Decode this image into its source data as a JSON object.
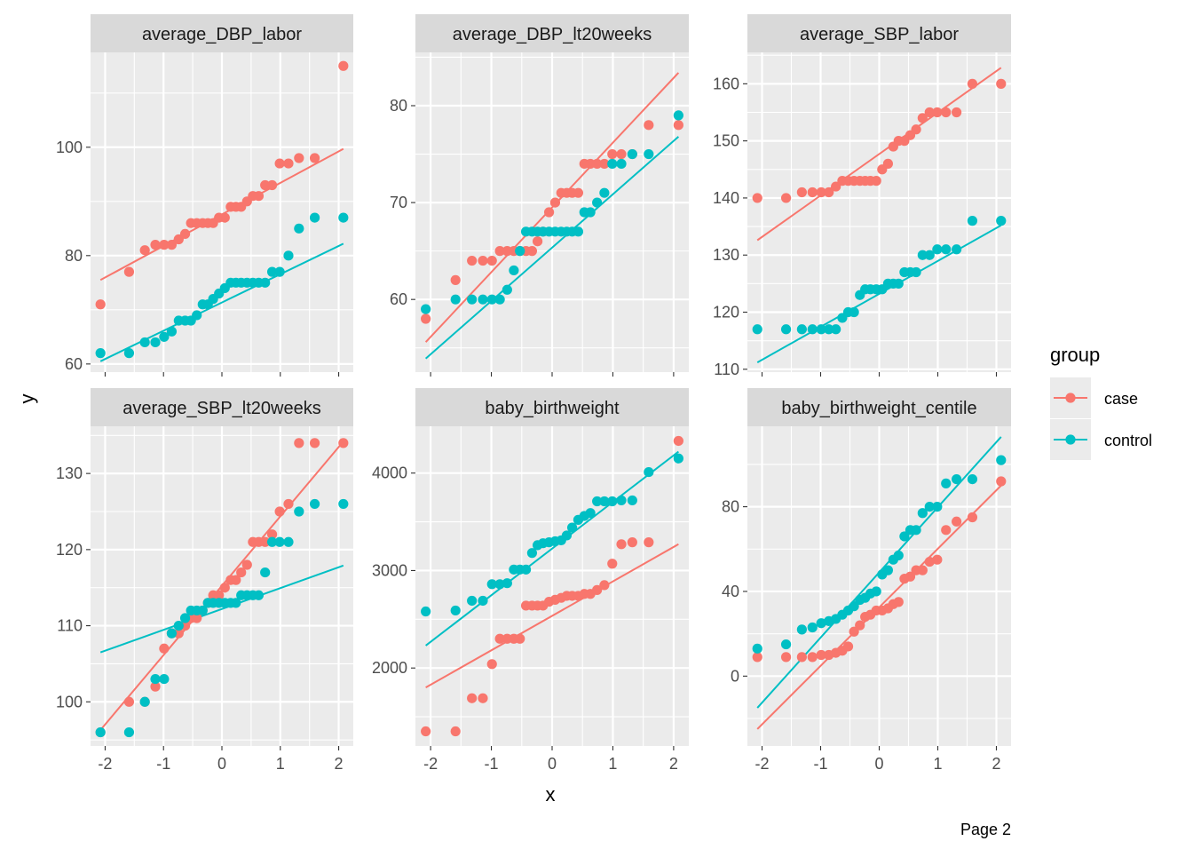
{
  "colors": {
    "case": "#F8766D",
    "control": "#00BFC4",
    "panel_bg": "#EBEBEB",
    "strip_bg": "#D9D9D9",
    "grid": "#FFFFFF"
  },
  "axis": {
    "xlabel": "x",
    "ylabel": "y"
  },
  "legend": {
    "title": "group",
    "placement": "right",
    "entries": [
      {
        "key": "case",
        "label": "case"
      },
      {
        "key": "control",
        "label": "control"
      }
    ]
  },
  "caption": "Page 2",
  "x_ticks": [
    "-2",
    "-1",
    "0",
    "1",
    "2"
  ],
  "x_tick_values": [
    -2,
    -1,
    0,
    1,
    2
  ],
  "chart_data": [
    {
      "type": "scatter",
      "facet": "average_DBP_labor",
      "xlim": [
        -2.25,
        2.25
      ],
      "ylim": [
        58.5,
        117.5
      ],
      "y_ticks": [
        "60",
        "80",
        "100"
      ],
      "y_tick_values": [
        60,
        80,
        100
      ],
      "series": [
        {
          "name": "case",
          "x": [
            -2.08,
            -1.59,
            -1.32,
            -1.14,
            -0.99,
            -0.86,
            -0.74,
            -0.63,
            -0.53,
            -0.43,
            -0.33,
            -0.24,
            -0.15,
            -0.05,
            0.05,
            0.15,
            0.24,
            0.33,
            0.43,
            0.53,
            0.63,
            0.74,
            0.86,
            0.99,
            1.14,
            1.32,
            1.59,
            2.08
          ],
          "y": [
            71,
            77,
            81,
            82,
            82,
            82,
            83,
            84,
            86,
            86,
            86,
            86,
            86,
            87,
            87,
            89,
            89,
            89,
            90,
            91,
            91,
            93,
            93,
            97,
            97,
            98,
            98,
            115
          ],
          "line": [
            [
              -2.08,
              75.5
            ],
            [
              2.08,
              99.7
            ]
          ]
        },
        {
          "name": "control",
          "x": [
            -2.08,
            -1.59,
            -1.32,
            -1.14,
            -0.99,
            -0.86,
            -0.74,
            -0.63,
            -0.53,
            -0.43,
            -0.33,
            -0.24,
            -0.15,
            -0.05,
            0.05,
            0.15,
            0.24,
            0.33,
            0.43,
            0.53,
            0.63,
            0.74,
            0.86,
            0.99,
            1.14,
            1.32,
            1.59,
            2.08
          ],
          "y": [
            62,
            62,
            64,
            64,
            65,
            66,
            68,
            68,
            68,
            69,
            71,
            71,
            72,
            73,
            74,
            75,
            75,
            75,
            75,
            75,
            75,
            75,
            77,
            77,
            80,
            85,
            87,
            87
          ],
          "line": [
            [
              -2.08,
              60.5
            ],
            [
              2.08,
              82.2
            ]
          ]
        }
      ]
    },
    {
      "type": "scatter",
      "facet": "average_DBP_lt20weeks",
      "xlim": [
        -2.25,
        2.25
      ],
      "ylim": [
        52.5,
        85.5
      ],
      "y_ticks": [
        "60",
        "70",
        "80"
      ],
      "y_tick_values": [
        60,
        70,
        80
      ],
      "series": [
        {
          "name": "case",
          "x": [
            -2.08,
            -1.59,
            -1.32,
            -1.14,
            -0.99,
            -0.86,
            -0.74,
            -0.63,
            -0.53,
            -0.43,
            -0.33,
            -0.24,
            -0.15,
            -0.05,
            0.05,
            0.15,
            0.24,
            0.33,
            0.43,
            0.53,
            0.63,
            0.74,
            0.86,
            0.99,
            1.14,
            1.32,
            1.59,
            2.08
          ],
          "y": [
            58,
            62,
            64,
            64,
            64,
            65,
            65,
            65,
            65,
            65,
            65,
            66,
            67,
            69,
            70,
            71,
            71,
            71,
            71,
            74,
            74,
            74,
            74,
            75,
            75,
            75,
            78,
            78
          ],
          "line": [
            [
              -2.08,
              55.6
            ],
            [
              2.08,
              83.4
            ]
          ]
        },
        {
          "name": "control",
          "x": [
            -2.08,
            -1.59,
            -1.32,
            -1.14,
            -0.99,
            -0.86,
            -0.74,
            -0.63,
            -0.53,
            -0.43,
            -0.33,
            -0.24,
            -0.15,
            -0.05,
            0.05,
            0.15,
            0.24,
            0.33,
            0.43,
            0.53,
            0.63,
            0.74,
            0.86,
            0.99,
            1.14,
            1.32,
            1.59,
            2.08
          ],
          "y": [
            59,
            60,
            60,
            60,
            60,
            60,
            61,
            63,
            65,
            67,
            67,
            67,
            67,
            67,
            67,
            67,
            67,
            67,
            67,
            69,
            69,
            70,
            71,
            74,
            74,
            75,
            75,
            79
          ],
          "line": [
            [
              -2.08,
              53.9
            ],
            [
              2.08,
              76.8
            ]
          ]
        }
      ]
    },
    {
      "type": "scatter",
      "facet": "average_SBP_labor",
      "xlim": [
        -2.25,
        2.25
      ],
      "ylim": [
        109.5,
        165.5
      ],
      "y_ticks": [
        "110",
        "120",
        "130",
        "140",
        "150",
        "160"
      ],
      "y_tick_values": [
        110,
        120,
        130,
        140,
        150,
        160
      ],
      "series": [
        {
          "name": "case",
          "x": [
            -2.08,
            -1.59,
            -1.32,
            -1.14,
            -0.99,
            -0.86,
            -0.74,
            -0.63,
            -0.53,
            -0.43,
            -0.33,
            -0.24,
            -0.15,
            -0.05,
            0.05,
            0.15,
            0.24,
            0.33,
            0.43,
            0.53,
            0.63,
            0.74,
            0.86,
            0.99,
            1.14,
            1.32,
            1.59,
            2.08
          ],
          "y": [
            140,
            140,
            141,
            141,
            141,
            141,
            142,
            143,
            143,
            143,
            143,
            143,
            143,
            143,
            145,
            146,
            149,
            150,
            150,
            151,
            152,
            154,
            155,
            155,
            155,
            155,
            160,
            160
          ],
          "line": [
            [
              -2.08,
              132.6
            ],
            [
              2.08,
              162.8
            ]
          ]
        },
        {
          "name": "control",
          "x": [
            -2.08,
            -1.59,
            -1.32,
            -1.14,
            -0.99,
            -0.86,
            -0.74,
            -0.63,
            -0.53,
            -0.43,
            -0.33,
            -0.24,
            -0.15,
            -0.05,
            0.05,
            0.15,
            0.24,
            0.33,
            0.43,
            0.53,
            0.63,
            0.74,
            0.86,
            0.99,
            1.14,
            1.32,
            1.59,
            2.08
          ],
          "y": [
            117,
            117,
            117,
            117,
            117,
            117,
            117,
            119,
            120,
            120,
            123,
            124,
            124,
            124,
            124,
            125,
            125,
            125,
            127,
            127,
            127,
            130,
            130,
            131,
            131,
            131,
            136,
            136
          ],
          "line": [
            [
              -2.08,
              111.2
            ],
            [
              2.08,
              135.2
            ]
          ]
        }
      ]
    },
    {
      "type": "scatter",
      "facet": "average_SBP_lt20weeks",
      "xlim": [
        -2.25,
        2.25
      ],
      "ylim": [
        94.2,
        136.2
      ],
      "y_ticks": [
        "100",
        "110",
        "120",
        "130"
      ],
      "y_tick_values": [
        100,
        110,
        120,
        130
      ],
      "series": [
        {
          "name": "case",
          "x": [
            -2.08,
            -1.59,
            -1.32,
            -1.14,
            -0.99,
            -0.86,
            -0.74,
            -0.63,
            -0.53,
            -0.43,
            -0.33,
            -0.24,
            -0.15,
            -0.05,
            0.05,
            0.15,
            0.24,
            0.33,
            0.43,
            0.53,
            0.63,
            0.74,
            0.86,
            0.99,
            1.14,
            1.32,
            1.59,
            2.08
          ],
          "y": [
            96,
            100,
            100,
            102,
            107,
            109,
            109,
            110,
            111,
            111,
            112,
            113,
            114,
            114,
            115,
            116,
            116,
            117,
            118,
            121,
            121,
            121,
            122,
            125,
            126,
            134,
            134,
            134
          ],
          "line": [
            [
              -2.08,
              96.3
            ],
            [
              2.08,
              134.2
            ]
          ]
        },
        {
          "name": "control",
          "x": [
            -2.08,
            -1.59,
            -1.32,
            -1.14,
            -0.99,
            -0.86,
            -0.74,
            -0.63,
            -0.53,
            -0.43,
            -0.33,
            -0.24,
            -0.15,
            -0.05,
            0.05,
            0.15,
            0.24,
            0.33,
            0.43,
            0.53,
            0.63,
            0.74,
            0.86,
            0.99,
            1.14,
            1.32,
            1.59,
            2.08
          ],
          "y": [
            96,
            96,
            100,
            103,
            103,
            109,
            110,
            111,
            112,
            112,
            112,
            113,
            113,
            113,
            113,
            113,
            113,
            114,
            114,
            114,
            114,
            117,
            121,
            121,
            121,
            125,
            126,
            126
          ],
          "line": [
            [
              -2.08,
              106.5
            ],
            [
              2.08,
              117.9
            ]
          ]
        }
      ]
    },
    {
      "type": "scatter",
      "facet": "baby_birthweight",
      "xlim": [
        -2.25,
        2.25
      ],
      "ylim": [
        1200,
        4480
      ],
      "y_ticks": [
        "2000",
        "3000",
        "4000"
      ],
      "y_tick_values": [
        2000,
        3000,
        4000
      ],
      "series": [
        {
          "name": "case",
          "x": [
            -2.08,
            -1.59,
            -1.32,
            -1.14,
            -0.99,
            -0.86,
            -0.74,
            -0.63,
            -0.53,
            -0.43,
            -0.33,
            -0.24,
            -0.15,
            -0.05,
            0.05,
            0.15,
            0.24,
            0.33,
            0.43,
            0.53,
            0.63,
            0.74,
            0.86,
            0.99,
            1.14,
            1.32,
            1.59,
            2.08
          ],
          "y": [
            1350,
            1350,
            1690,
            1690,
            2040,
            2300,
            2300,
            2300,
            2300,
            2640,
            2640,
            2640,
            2640,
            2680,
            2700,
            2720,
            2740,
            2740,
            2740,
            2760,
            2760,
            2800,
            2850,
            3070,
            3270,
            3290,
            3290,
            4330
          ],
          "line": [
            [
              -2.08,
              1800
            ],
            [
              2.08,
              3270
            ]
          ]
        },
        {
          "name": "control",
          "x": [
            -2.08,
            -1.59,
            -1.32,
            -1.14,
            -0.99,
            -0.86,
            -0.74,
            -0.63,
            -0.53,
            -0.43,
            -0.33,
            -0.24,
            -0.15,
            -0.05,
            0.05,
            0.15,
            0.24,
            0.33,
            0.43,
            0.53,
            0.63,
            0.74,
            0.86,
            0.99,
            1.14,
            1.32,
            1.59,
            2.08
          ],
          "y": [
            2580,
            2590,
            2690,
            2690,
            2860,
            2860,
            2870,
            3010,
            3010,
            3010,
            3180,
            3260,
            3280,
            3290,
            3300,
            3310,
            3360,
            3440,
            3520,
            3560,
            3590,
            3710,
            3710,
            3710,
            3720,
            3720,
            4010,
            4150
          ],
          "line": [
            [
              -2.08,
              2230
            ],
            [
              2.08,
              4220
            ]
          ]
        }
      ]
    },
    {
      "type": "scatter",
      "facet": "baby_birthweight_centile",
      "xlim": [
        -2.25,
        2.25
      ],
      "ylim": [
        -33,
        118
      ],
      "y_ticks": [
        "0",
        "40",
        "80"
      ],
      "y_tick_values": [
        0,
        40,
        80
      ],
      "series": [
        {
          "name": "case",
          "x": [
            -2.08,
            -1.59,
            -1.32,
            -1.14,
            -0.99,
            -0.86,
            -0.74,
            -0.63,
            -0.53,
            -0.43,
            -0.33,
            -0.24,
            -0.15,
            -0.05,
            0.05,
            0.15,
            0.24,
            0.33,
            0.43,
            0.53,
            0.63,
            0.74,
            0.86,
            0.99,
            1.14,
            1.32,
            1.59,
            2.08
          ],
          "y": [
            9,
            9,
            9,
            9,
            10,
            10,
            11,
            12,
            14,
            21,
            24,
            28,
            29,
            31,
            31,
            32,
            34,
            35,
            46,
            47,
            50,
            50,
            54,
            55,
            69,
            73,
            75,
            92
          ],
          "line": [
            [
              -2.08,
              -25
            ],
            [
              2.08,
              90
            ]
          ]
        },
        {
          "name": "control",
          "x": [
            -2.08,
            -1.59,
            -1.32,
            -1.14,
            -0.99,
            -0.86,
            -0.74,
            -0.63,
            -0.53,
            -0.43,
            -0.33,
            -0.24,
            -0.15,
            -0.05,
            0.05,
            0.15,
            0.24,
            0.33,
            0.43,
            0.53,
            0.63,
            0.74,
            0.86,
            0.99,
            1.14,
            1.32,
            1.59,
            2.08
          ],
          "y": [
            13,
            15,
            22,
            23,
            25,
            26,
            27,
            29,
            31,
            33,
            36,
            37,
            39,
            40,
            48,
            50,
            55,
            57,
            66,
            69,
            69,
            77,
            80,
            80,
            91,
            93,
            93,
            102
          ],
          "line": [
            [
              -2.08,
              -15
            ],
            [
              2.08,
              113
            ]
          ]
        }
      ]
    }
  ]
}
